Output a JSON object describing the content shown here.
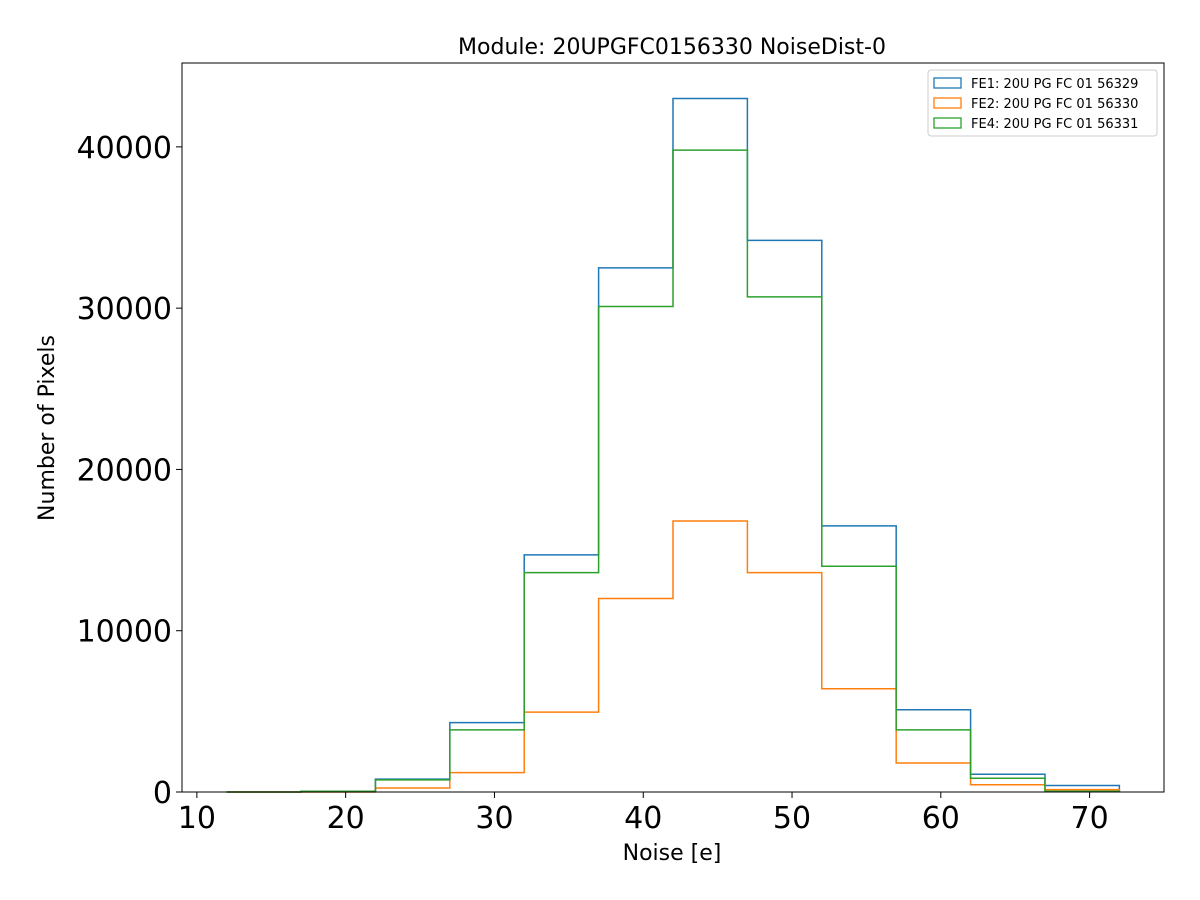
{
  "chart_data": {
    "type": "bar",
    "title": "Module: 20UPGFC0156330 NoiseDist-0",
    "xlabel": "Noise [e]",
    "ylabel": "Number of Pixels",
    "xlim": [
      9,
      75
    ],
    "ylim": [
      0,
      45200
    ],
    "xticks": [
      10,
      20,
      30,
      40,
      50,
      60,
      70
    ],
    "yticks": [
      0,
      10000,
      20000,
      30000,
      40000
    ],
    "legend_position": "top-right",
    "grid": false,
    "bin_edges": [
      12,
      17,
      22,
      27,
      32,
      37,
      42,
      47,
      52,
      57,
      62,
      67,
      72
    ],
    "series": [
      {
        "name": "FE1: 20U PG FC 01 56329",
        "color": "#1f77b4",
        "values": [
          0,
          50,
          800,
          4300,
          14700,
          32500,
          43000,
          34200,
          16500,
          5100,
          1100,
          400
        ]
      },
      {
        "name": "FE2: 20U PG FC 01 56330",
        "color": "#ff7f0e",
        "values": [
          0,
          0,
          250,
          1200,
          4950,
          12000,
          16800,
          13600,
          6400,
          1800,
          450,
          150
        ]
      },
      {
        "name": "FE4: 20U PG FC 01 56331",
        "color": "#2ca02c",
        "values": [
          0,
          50,
          750,
          3850,
          13600,
          30100,
          39800,
          30700,
          14000,
          3850,
          850,
          50
        ]
      }
    ]
  }
}
